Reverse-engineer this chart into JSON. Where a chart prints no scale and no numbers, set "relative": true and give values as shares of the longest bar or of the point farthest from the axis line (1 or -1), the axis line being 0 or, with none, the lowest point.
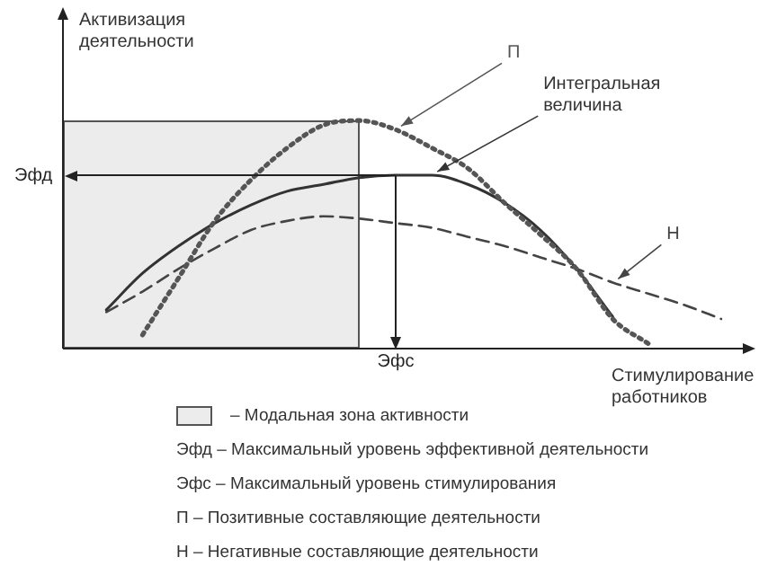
{
  "chart_data": {
    "type": "line",
    "relative": true,
    "xlabel": "Стимулирование работников",
    "ylabel": "Активизация деятельности",
    "categories": [
      null,
      null,
      null,
      null,
      null,
      null,
      null,
      null,
      null,
      null,
      null,
      null,
      null,
      null,
      null,
      null,
      null,
      null,
      null
    ],
    "series": [
      {
        "name": "П",
        "color": "#555555",
        "line_style": "dotted",
        "values": [
          null,
          null,
          0.06,
          0.31,
          0.56,
          0.74,
          0.88,
          0.98,
          1,
          0.96,
          0.88,
          0.79,
          0.64,
          0.5,
          0.35,
          0.13,
          0.02,
          null,
          null
        ]
      },
      {
        "name": "Интегральная величина",
        "color": "#333333",
        "line_style": "solid",
        "values": [
          null,
          0.17,
          0.33,
          0.45,
          0.55,
          0.63,
          0.69,
          0.72,
          0.75,
          0.76,
          0.76,
          0.72,
          0.64,
          0.52,
          0.35,
          0.14,
          null,
          null,
          null
        ]
      },
      {
        "name": "Н",
        "color": "#444444",
        "line_style": "dashed",
        "values": [
          null,
          0.16,
          0.25,
          0.35,
          0.44,
          0.52,
          0.56,
          0.58,
          0.57,
          0.55,
          0.53,
          0.49,
          0.45,
          0.4,
          0.35,
          0.29,
          0.24,
          0.19,
          0.13
        ]
      }
    ],
    "ref_lines": [
      {
        "axis": "y",
        "value": 0.76,
        "label": "Эфд"
      }
    ],
    "annotations": [
      "Эфс",
      "– Модальная зона активности",
      "Эфд – Максимальный уровень эффективной деятельности",
      "Эфс – Максимальный уровень стимулирования",
      "П – Позитивные составляющие деятельности",
      "Н – Негативные составляющие деятельности"
    ]
  }
}
